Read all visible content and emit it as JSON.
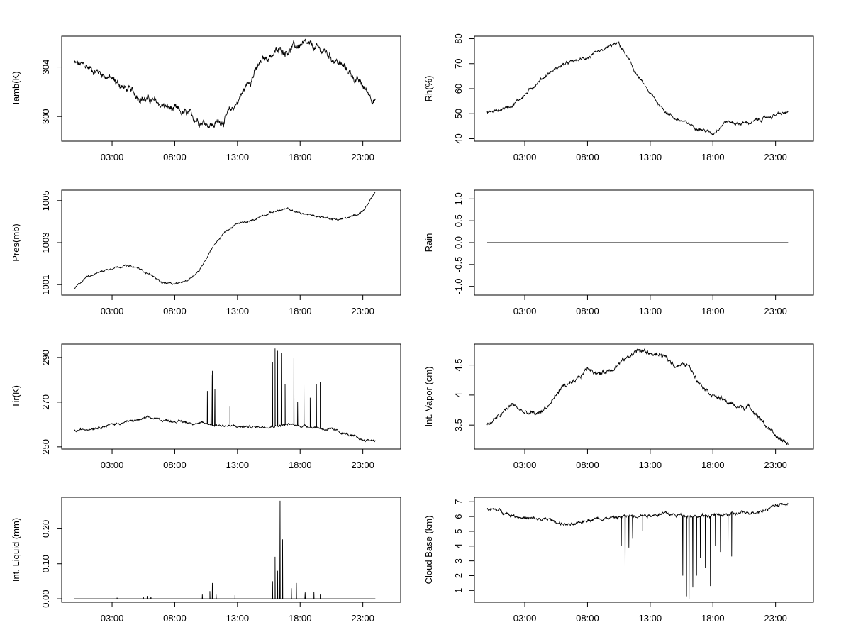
{
  "chart_data": [
    {
      "id": "tamb",
      "type": "line",
      "ylabel": "Tamb(K)",
      "ylim": [
        298,
        306.5
      ],
      "yticks": [
        300,
        304
      ],
      "xticks": [
        "03:00",
        "08:00",
        "13:00",
        "18:00",
        "23:00"
      ],
      "xtick_hours": [
        3,
        8,
        13,
        18,
        23
      ],
      "xlim": [
        0,
        25
      ],
      "series": [
        {
          "name": "Tamb",
          "x": [
            0,
            1,
            2,
            3,
            4,
            5,
            6,
            7,
            8,
            9,
            10,
            11,
            12,
            13,
            14,
            15,
            16,
            17,
            18,
            19,
            20,
            21,
            22,
            23,
            24
          ],
          "y": [
            304.3,
            304.0,
            303.6,
            303.0,
            302.3,
            301.7,
            301.3,
            300.9,
            300.5,
            300.1,
            299.7,
            299.3,
            299.8,
            301.2,
            303.0,
            304.5,
            305.2,
            305.4,
            305.8,
            305.6,
            305.2,
            304.4,
            303.5,
            302.4,
            301.3
          ],
          "noise": 0.35
        }
      ]
    },
    {
      "id": "rh",
      "type": "line",
      "ylabel": "Rh(%)",
      "ylim": [
        39,
        81
      ],
      "yticks": [
        40,
        50,
        60,
        70,
        80
      ],
      "xticks": [
        "03:00",
        "08:00",
        "13:00",
        "18:00",
        "23:00"
      ],
      "xtick_hours": [
        3,
        8,
        13,
        18,
        23
      ],
      "xlim": [
        0,
        25
      ],
      "series": [
        {
          "name": "Rh",
          "x": [
            0,
            1,
            2,
            3,
            4,
            5,
            6,
            7,
            8,
            9,
            10,
            10.5,
            11,
            12,
            13,
            14,
            15,
            16,
            17,
            18,
            19,
            20,
            21,
            22,
            23,
            24
          ],
          "y": [
            50.5,
            51.5,
            53.5,
            57.5,
            62.5,
            66.5,
            69.5,
            71,
            72.5,
            74.5,
            77.5,
            78,
            74,
            65,
            58,
            52,
            48,
            46,
            44,
            42,
            47,
            46,
            46.5,
            48,
            49.5,
            50.5
          ],
          "noise": 0.7
        }
      ]
    },
    {
      "id": "pres",
      "type": "line",
      "ylabel": "Pres(mb)",
      "ylim": [
        1000.5,
        1005.5
      ],
      "yticks": [
        1001,
        1003,
        1005
      ],
      "xticks": [
        "03:00",
        "08:00",
        "13:00",
        "18:00",
        "23:00"
      ],
      "xtick_hours": [
        3,
        8,
        13,
        18,
        23
      ],
      "xlim": [
        0,
        25
      ],
      "series": [
        {
          "name": "Pres",
          "x": [
            0,
            0.5,
            1,
            2,
            3,
            4,
            5,
            6,
            7,
            8,
            9,
            10,
            11,
            12,
            13,
            14,
            15,
            16,
            17,
            18,
            19,
            20,
            21,
            22,
            23,
            23.5,
            24
          ],
          "y": [
            1000.8,
            1001.1,
            1001.4,
            1001.6,
            1001.8,
            1001.9,
            1001.8,
            1001.5,
            1001.1,
            1001.0,
            1001.2,
            1001.7,
            1002.8,
            1003.5,
            1003.9,
            1004.0,
            1004.3,
            1004.5,
            1004.6,
            1004.4,
            1004.3,
            1004.2,
            1004.1,
            1004.2,
            1004.5,
            1004.9,
            1005.4
          ],
          "noise": 0.05
        }
      ]
    },
    {
      "id": "rain",
      "type": "line",
      "ylabel": "Rain",
      "ylim": [
        -1.2,
        1.2
      ],
      "yticks": [
        -1.0,
        -0.5,
        0.0,
        0.5,
        1.0
      ],
      "xticks": [
        "03:00",
        "08:00",
        "13:00",
        "18:00",
        "23:00"
      ],
      "xtick_hours": [
        3,
        8,
        13,
        18,
        23
      ],
      "xlim": [
        0,
        25
      ],
      "series": [
        {
          "name": "Rain",
          "x": [
            0,
            24
          ],
          "y": [
            0,
            0
          ],
          "noise": 0
        }
      ]
    },
    {
      "id": "tir",
      "type": "line",
      "ylabel": "Tir(K)",
      "ylim": [
        249,
        296
      ],
      "yticks": [
        250,
        270,
        290
      ],
      "xticks": [
        "03:00",
        "08:00",
        "13:00",
        "18:00",
        "23:00"
      ],
      "xtick_hours": [
        3,
        8,
        13,
        18,
        23
      ],
      "xlim": [
        0,
        25
      ],
      "series": [
        {
          "name": "Tir",
          "x": [
            0,
            2,
            4,
            6,
            7,
            9,
            11,
            13,
            15,
            17,
            19,
            21,
            23,
            24
          ],
          "y": [
            257,
            259,
            261,
            263,
            262,
            261,
            260,
            259,
            259,
            260,
            259,
            257,
            253,
            253
          ],
          "noise": 0.6,
          "spikes": [
            [
              10.6,
              275
            ],
            [
              10.9,
              282
            ],
            [
              11.0,
              284
            ],
            [
              11.2,
              276
            ],
            [
              12.4,
              268
            ],
            [
              15.8,
              288
            ],
            [
              16.0,
              294
            ],
            [
              16.2,
              293
            ],
            [
              16.5,
              292
            ],
            [
              16.8,
              278
            ],
            [
              17.5,
              290
            ],
            [
              17.8,
              270
            ],
            [
              18.3,
              279
            ],
            [
              18.8,
              272
            ],
            [
              19.3,
              278
            ],
            [
              19.6,
              279
            ]
          ]
        }
      ]
    },
    {
      "id": "vapor",
      "type": "line",
      "ylabel": "Int. Vapor (cm)",
      "ylim": [
        3.1,
        4.85
      ],
      "yticks": [
        3.5,
        4.0,
        4.5
      ],
      "xticks": [
        "03:00",
        "08:00",
        "13:00",
        "18:00",
        "23:00"
      ],
      "xtick_hours": [
        3,
        8,
        13,
        18,
        23
      ],
      "xlim": [
        0,
        25
      ],
      "series": [
        {
          "name": "Vapor",
          "x": [
            0,
            1,
            2,
            3,
            4,
            5,
            6,
            7,
            8,
            9,
            10,
            11,
            12,
            13,
            14,
            15,
            16,
            17,
            18,
            19,
            20,
            21,
            22,
            23,
            24
          ],
          "y": [
            3.5,
            3.65,
            3.85,
            3.7,
            3.68,
            3.85,
            4.15,
            4.2,
            4.45,
            4.35,
            4.45,
            4.6,
            4.75,
            4.7,
            4.65,
            4.5,
            4.5,
            4.2,
            4.0,
            3.9,
            3.8,
            3.8,
            3.55,
            3.3,
            3.2
          ],
          "noise": 0.04
        }
      ]
    },
    {
      "id": "liquid",
      "type": "line",
      "ylabel": "Int. Liquid (mm)",
      "ylim": [
        -0.01,
        0.29
      ],
      "yticks": [
        0.0,
        0.1,
        0.2
      ],
      "ytick_labels": [
        "0.00",
        "0.10",
        "0.20"
      ],
      "xticks": [
        "03:00",
        "08:00",
        "13:00",
        "18:00",
        "23:00"
      ],
      "xtick_hours": [
        3,
        8,
        13,
        18,
        23
      ],
      "xlim": [
        0,
        25
      ],
      "series": [
        {
          "name": "Liquid",
          "x": [
            0,
            24
          ],
          "y": [
            0,
            0
          ],
          "noise": 0,
          "spikes": [
            [
              3.4,
              0.003
            ],
            [
              5.5,
              0.006
            ],
            [
              5.8,
              0.008
            ],
            [
              6.1,
              0.005
            ],
            [
              10.2,
              0.012
            ],
            [
              10.8,
              0.022
            ],
            [
              11.0,
              0.045
            ],
            [
              11.3,
              0.012
            ],
            [
              12.8,
              0.01
            ],
            [
              15.8,
              0.05
            ],
            [
              16.0,
              0.12
            ],
            [
              16.2,
              0.08
            ],
            [
              16.4,
              0.28
            ],
            [
              16.6,
              0.17
            ],
            [
              17.3,
              0.03
            ],
            [
              17.7,
              0.045
            ],
            [
              18.4,
              0.018
            ],
            [
              19.1,
              0.02
            ],
            [
              19.6,
              0.012
            ]
          ]
        }
      ]
    },
    {
      "id": "cloudbase",
      "type": "line",
      "ylabel": "Cloud Base (km)",
      "ylim": [
        0.2,
        7.3
      ],
      "yticks": [
        1,
        2,
        3,
        4,
        5,
        6,
        7
      ],
      "xticks": [
        "03:00",
        "08:00",
        "13:00",
        "18:00",
        "23:00"
      ],
      "xtick_hours": [
        3,
        8,
        13,
        18,
        23
      ],
      "xlim": [
        0,
        25
      ],
      "series": [
        {
          "name": "CloudBase",
          "x": [
            0,
            1,
            2,
            3,
            4,
            5,
            6,
            7,
            8,
            9,
            10,
            11,
            12,
            13,
            14,
            15,
            16,
            17,
            18,
            19,
            20,
            21,
            22,
            23,
            24
          ],
          "y": [
            6.5,
            6.4,
            6.1,
            5.9,
            5.8,
            5.8,
            5.5,
            5.4,
            5.8,
            5.9,
            5.9,
            6.0,
            6.1,
            6.1,
            6.2,
            6.1,
            6.1,
            6.0,
            6.1,
            6.1,
            6.2,
            6.3,
            6.4,
            6.8,
            6.8
          ],
          "noise": 0.12,
          "direction": "down",
          "spikes": [
            [
              10.7,
              4.0
            ],
            [
              11.0,
              2.2
            ],
            [
              11.3,
              3.9
            ],
            [
              11.6,
              4.5
            ],
            [
              12.4,
              5.0
            ],
            [
              15.6,
              2.0
            ],
            [
              15.9,
              0.6
            ],
            [
              16.1,
              0.4
            ],
            [
              16.4,
              1.2
            ],
            [
              16.7,
              2.0
            ],
            [
              17.0,
              3.2
            ],
            [
              17.4,
              2.5
            ],
            [
              17.8,
              1.3
            ],
            [
              18.2,
              4.0
            ],
            [
              18.6,
              3.6
            ],
            [
              19.2,
              3.3
            ],
            [
              19.5,
              3.3
            ]
          ]
        }
      ]
    }
  ]
}
